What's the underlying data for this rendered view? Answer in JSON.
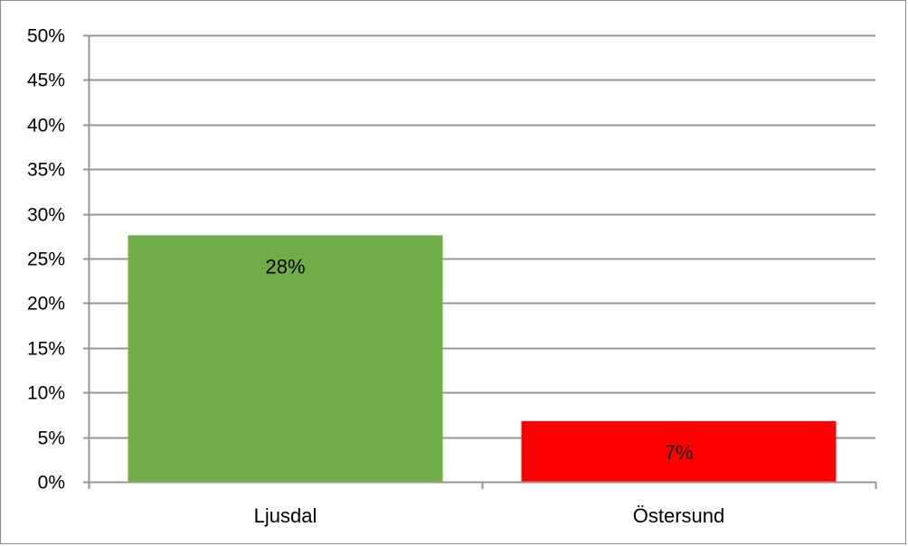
{
  "chart_data": {
    "type": "bar",
    "categories": [
      "Ljusdal",
      "Östersund"
    ],
    "values": [
      0.276,
      0.068
    ],
    "data_labels": [
      "28%",
      "7%"
    ],
    "colors": [
      "#70ad47",
      "#ff0000"
    ],
    "ylim": [
      0,
      0.5
    ],
    "ytick_values": [
      0,
      0.05,
      0.1,
      0.15,
      0.2,
      0.25,
      0.3,
      0.35,
      0.4,
      0.45,
      0.5
    ],
    "yticks": [
      "0%",
      "5%",
      "10%",
      "15%",
      "20%",
      "25%",
      "30%",
      "35%",
      "40%",
      "45%",
      "50%"
    ],
    "grid": true,
    "legend": "none",
    "gridline_color": "#969696"
  }
}
